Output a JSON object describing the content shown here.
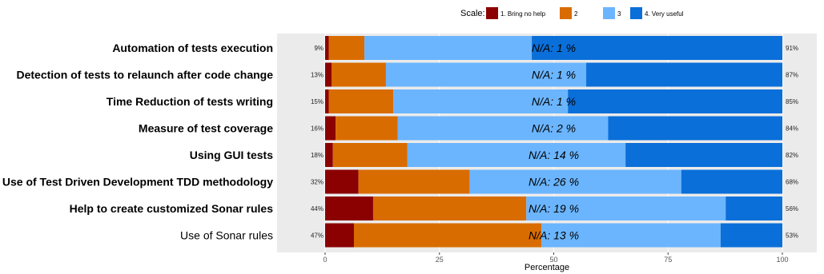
{
  "chart_data": {
    "type": "bar",
    "orientation": "horizontal",
    "stacked": true,
    "xlabel": "Percentage",
    "xlim": [
      0,
      100
    ],
    "xticks": [
      "0",
      "25",
      "50",
      "75",
      "100"
    ],
    "grid": true,
    "legend": {
      "title": "Scale:",
      "position": "top",
      "entries": [
        {
          "label": "1. Bring no help",
          "color": "#8B0000"
        },
        {
          "label": "2",
          "color": "#D96C00"
        },
        {
          "label": "3",
          "color": "#6BB5FF"
        },
        {
          "label": "4. Very useful",
          "color": "#0A6FD9"
        }
      ]
    },
    "categories": [
      {
        "label": "Automation of tests execution",
        "bold": true,
        "left_pct": "9%",
        "right_pct": "91%",
        "na_label": "N/A: 1 %",
        "segments": [
          0.8,
          7.8,
          36.6,
          54.8
        ]
      },
      {
        "label": "Detection of tests to relaunch after code change",
        "bold": true,
        "left_pct": "13%",
        "right_pct": "87%",
        "na_label": "N/A: 1 %",
        "segments": [
          1.4,
          11.9,
          43.8,
          42.9
        ]
      },
      {
        "label": "Time Reduction of tests writing",
        "bold": true,
        "left_pct": "15%",
        "right_pct": "85%",
        "na_label": "N/A: 1 %",
        "segments": [
          0.8,
          14.1,
          38.2,
          46.9
        ]
      },
      {
        "label": "Measure of test coverage",
        "bold": true,
        "left_pct": "16%",
        "right_pct": "84%",
        "na_label": "N/A: 2 %",
        "segments": [
          2.3,
          13.6,
          46.0,
          38.1
        ]
      },
      {
        "label": "Using GUI tests",
        "bold": true,
        "left_pct": "18%",
        "right_pct": "82%",
        "na_label": "N/A: 14 %",
        "segments": [
          1.7,
          16.3,
          47.7,
          34.3
        ]
      },
      {
        "label": "Use of Test Driven Development TDD methodology",
        "bold": true,
        "left_pct": "32%",
        "right_pct": "68%",
        "na_label": "N/A: 26 %",
        "segments": [
          7.3,
          24.3,
          46.3,
          22.1
        ]
      },
      {
        "label": "Help to create customized Sonar rules",
        "bold": true,
        "left_pct": "44%",
        "right_pct": "56%",
        "na_label": "N/A: 19 %",
        "segments": [
          10.5,
          33.5,
          43.6,
          12.4
        ]
      },
      {
        "label": "Use of Sonar rules",
        "bold": false,
        "left_pct": "47%",
        "right_pct": "53%",
        "na_label": "N/A: 13 %",
        "segments": [
          6.3,
          41.0,
          39.2,
          13.5
        ]
      }
    ],
    "series": [
      {
        "name": "1. Bring no help",
        "values": [
          0.8,
          1.4,
          0.8,
          2.3,
          1.7,
          7.3,
          10.5,
          6.3
        ]
      },
      {
        "name": "2",
        "values": [
          7.8,
          11.9,
          14.1,
          13.6,
          16.3,
          24.3,
          33.5,
          41.0
        ]
      },
      {
        "name": "3",
        "values": [
          36.6,
          43.8,
          38.2,
          46.0,
          47.7,
          46.3,
          43.6,
          39.2
        ]
      },
      {
        "name": "4. Very useful",
        "values": [
          54.8,
          42.9,
          46.9,
          38.1,
          34.3,
          22.1,
          12.4,
          13.5
        ]
      }
    ]
  },
  "colors": {
    "panel_bg": "#EBEBEB",
    "grid": "#FFFFFF",
    "series": [
      "#8B0000",
      "#D96C00",
      "#6BB5FF",
      "#0A6FD9"
    ]
  }
}
